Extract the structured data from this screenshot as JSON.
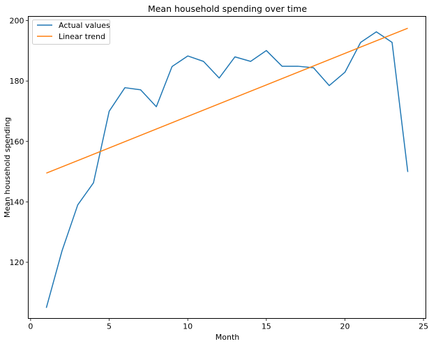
{
  "chart_data": {
    "type": "line",
    "title": "Mean household spending over time",
    "xlabel": "Month",
    "ylabel": "Mean household spending",
    "xlim": [
      -0.15,
      25.15
    ],
    "ylim": [
      101.4,
      201.4
    ],
    "x_ticks": [
      0,
      5,
      10,
      15,
      20,
      25
    ],
    "y_ticks": [
      120,
      140,
      160,
      180,
      200
    ],
    "grid": false,
    "legend_position": "top-left",
    "series": [
      {
        "name": "Actual values",
        "color": "#1f77b4",
        "x": [
          1,
          2,
          3,
          4,
          5,
          6,
          7,
          8,
          9,
          10,
          11,
          12,
          13,
          14,
          15,
          16,
          17,
          18,
          19,
          20,
          21,
          22,
          23,
          24
        ],
        "y": [
          104.9,
          123.8,
          139.0,
          146.3,
          170.0,
          177.8,
          177.1,
          171.5,
          184.8,
          188.3,
          186.5,
          181.0,
          188.0,
          186.5,
          190.1,
          184.9,
          184.9,
          184.4,
          178.5,
          182.9,
          192.8,
          196.3,
          192.8,
          149.9
        ]
      },
      {
        "name": "Linear trend",
        "color": "#ff7f0e",
        "x": [
          1,
          24
        ],
        "y": [
          149.5,
          197.5
        ]
      }
    ]
  }
}
